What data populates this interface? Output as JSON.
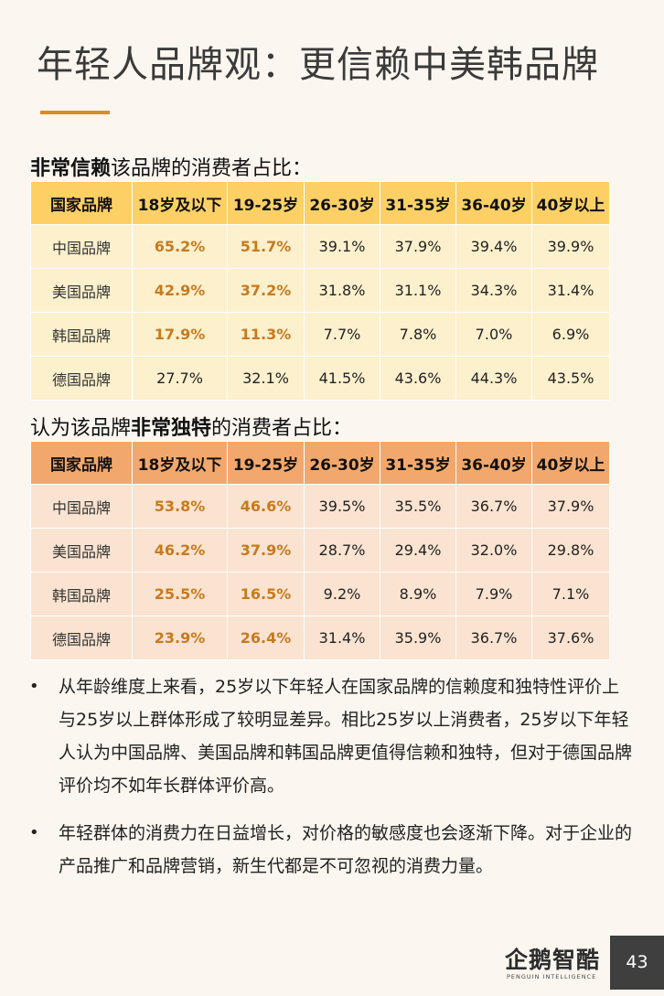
{
  "page": {
    "title": "年轻人品牌观：更信赖中美韩品牌",
    "page_number": "43"
  },
  "section1": {
    "heading_bold": "非常信赖",
    "heading_rest": "该品牌的消费者占比：",
    "headers": [
      "国家品牌",
      "18岁及以下",
      "19-25岁",
      "26-30岁",
      "31-35岁",
      "36-40岁",
      "40岁以上"
    ],
    "rows": [
      {
        "brand": "中国品牌",
        "values": [
          "65.2%",
          "51.7%",
          "39.1%",
          "37.9%",
          "39.4%",
          "39.9%"
        ]
      },
      {
        "brand": "美国品牌",
        "values": [
          "42.9%",
          "37.2%",
          "31.8%",
          "31.1%",
          "34.3%",
          "31.4%"
        ]
      },
      {
        "brand": "韩国品牌",
        "values": [
          "17.9%",
          "11.3%",
          "7.7%",
          "7.8%",
          "7.0%",
          "6.9%"
        ]
      },
      {
        "brand": "德国品牌",
        "values": [
          "27.7%",
          "32.1%",
          "41.5%",
          "43.6%",
          "44.3%",
          "43.5%"
        ]
      }
    ]
  },
  "section2": {
    "heading_pre": "认为该品牌",
    "heading_bold": "非常独特",
    "heading_rest": "的消费者占比：",
    "headers": [
      "国家品牌",
      "18岁及以下",
      "19-25岁",
      "26-30岁",
      "31-35岁",
      "36-40岁",
      "40岁以上"
    ],
    "rows": [
      {
        "brand": "中国品牌",
        "values": [
          "53.8%",
          "46.6%",
          "39.5%",
          "35.5%",
          "36.7%",
          "37.9%"
        ]
      },
      {
        "brand": "美国品牌",
        "values": [
          "46.2%",
          "37.9%",
          "28.7%",
          "29.4%",
          "32.0%",
          "29.8%"
        ]
      },
      {
        "brand": "韩国品牌",
        "values": [
          "25.5%",
          "16.5%",
          "9.2%",
          "8.9%",
          "7.9%",
          "7.1%"
        ]
      },
      {
        "brand": "德国品牌",
        "values": [
          "23.9%",
          "26.4%",
          "31.4%",
          "35.9%",
          "36.7%",
          "37.6%"
        ]
      }
    ]
  },
  "bullets": [
    "从年龄维度上来看，25岁以下年轻人在国家品牌的信赖度和独特性评价上与25岁以上群体形成了较明显差异。相比25岁以上消费者，25岁以下年轻人认为中国品牌、美国品牌和韩国品牌更值得信赖和独特，但对于德国品牌评价均不如年长群体评价高。",
    "年轻群体的消费力在日益增长，对价格的敏感度也会逐渐下降。对于企业的产品推广和品牌营销，新生代都是不可忽视的消费力量。"
  ],
  "bullet_marker": "•",
  "logo": {
    "name": "企鹅智酷",
    "subtitle": "PENGUIN INTELLIGENCE"
  },
  "colors": {
    "accent": "#e08a1e",
    "highlight_text": "#c77a1e",
    "table1_header": "#fdd065",
    "table1_cell": "#fdf0cd",
    "table2_header": "#f2a86c",
    "table2_cell": "#fae3d0"
  }
}
